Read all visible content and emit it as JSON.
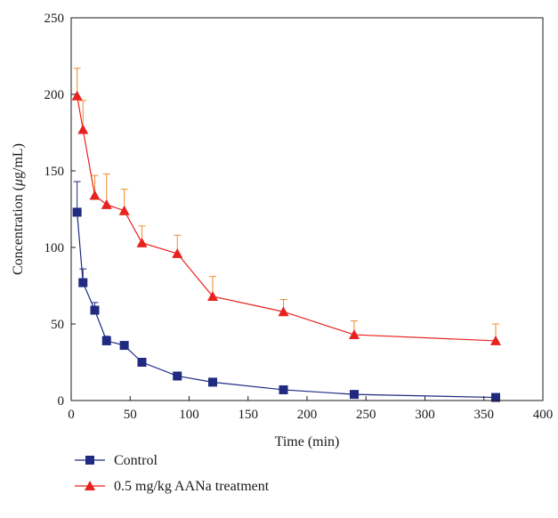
{
  "chart_data": {
    "type": "line",
    "xlabel": "Time (min)",
    "ylabel_prefix": "Concentration (",
    "ylabel_mu": "μ",
    "ylabel_suffix": "g/mL)",
    "xlim": [
      0,
      400
    ],
    "ylim": [
      0,
      250
    ],
    "xticks": [
      0,
      50,
      100,
      150,
      200,
      250,
      300,
      350,
      400
    ],
    "yticks": [
      0,
      50,
      100,
      150,
      200,
      250
    ],
    "grid": false,
    "legend_position": "bottom-left",
    "x": [
      5,
      10,
      20,
      30,
      45,
      60,
      90,
      120,
      180,
      240,
      360
    ],
    "series": [
      {
        "name": "Control",
        "color": "#1f2a80",
        "marker": "square",
        "values": [
          123,
          77,
          59,
          39,
          36,
          25,
          16,
          12,
          7,
          4,
          2
        ],
        "error_plus": [
          20,
          9,
          5,
          3,
          2,
          1,
          1,
          1,
          0.5,
          0.5,
          0.5
        ]
      },
      {
        "name": "0.5 mg/kg AANa treatment",
        "color": "#e8231f",
        "error_color": "#f08a2a",
        "marker": "triangle",
        "values": [
          199,
          177,
          134,
          128,
          124,
          103,
          96,
          68,
          58,
          43,
          39
        ],
        "error_plus": [
          18,
          19,
          13,
          20,
          14,
          11,
          12,
          13,
          8,
          9,
          11
        ]
      }
    ]
  }
}
